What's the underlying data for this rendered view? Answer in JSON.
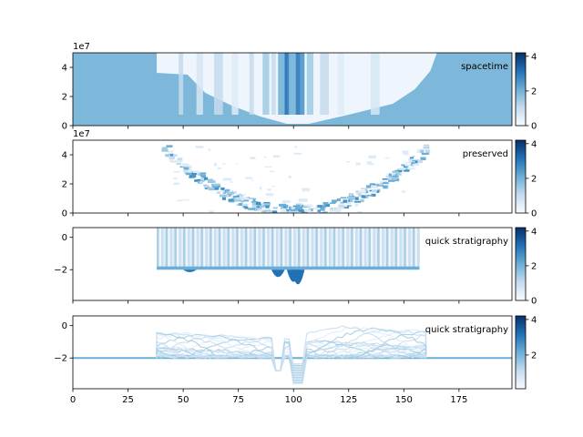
{
  "chart_data": [
    {
      "type": "heatmap",
      "title": "spacetime",
      "x_range": [
        0,
        199
      ],
      "y_range": [
        0,
        50000000
      ],
      "y_offset_text": "1e7",
      "y_ticks": [
        {
          "value": 0,
          "label": "0"
        },
        {
          "value": 20000000,
          "label": "2"
        },
        {
          "value": 40000000,
          "label": "4"
        }
      ],
      "colorbar": {
        "range": [
          0,
          4.2
        ],
        "ticks": [
          0,
          2,
          4
        ],
        "labels": [
          "0",
          "2",
          "4"
        ],
        "cmap": "Blues"
      },
      "grid": false
    },
    {
      "type": "heatmap",
      "title": "preserved",
      "x_range": [
        0,
        199
      ],
      "y_range": [
        0,
        50000000
      ],
      "y_offset_text": "1e7",
      "y_ticks": [
        {
          "value": 0,
          "label": "0"
        },
        {
          "value": 20000000,
          "label": "2"
        },
        {
          "value": 40000000,
          "label": "4"
        }
      ],
      "colorbar": {
        "range": [
          0,
          4.2
        ],
        "ticks": [
          0,
          2,
          4
        ],
        "labels": [
          "0",
          "2",
          "4"
        ],
        "cmap": "Blues"
      },
      "grid": false
    },
    {
      "type": "heatmap",
      "title": "quick stratigraphy",
      "x_range": [
        0,
        199
      ],
      "y_range": [
        -3.9,
        0.6
      ],
      "y_ticks": [
        {
          "value": 0,
          "label": "0"
        },
        {
          "value": -2,
          "label": "−2"
        }
      ],
      "colorbar": {
        "range": [
          0,
          4.2
        ],
        "ticks": [
          0,
          2,
          4
        ],
        "labels": [
          "0",
          "2",
          "4"
        ],
        "cmap": "Blues"
      },
      "grid": false
    },
    {
      "type": "line",
      "title": "quick stratigraphy",
      "x_range": [
        0,
        199
      ],
      "y_range": [
        -3.9,
        0.6
      ],
      "x_ticks": [
        0,
        25,
        50,
        75,
        100,
        125,
        150,
        175
      ],
      "x_tick_labels": [
        "0",
        "25",
        "50",
        "75",
        "100",
        "125",
        "150",
        "175"
      ],
      "y_ticks": [
        {
          "value": 0,
          "label": "0"
        },
        {
          "value": -2,
          "label": "−2"
        }
      ],
      "colorbar": {
        "range": [
          0.1,
          4.2
        ],
        "ticks": [
          2,
          4
        ],
        "labels": [
          "2",
          "4"
        ],
        "cmap": "Blues"
      },
      "grid": false
    }
  ]
}
